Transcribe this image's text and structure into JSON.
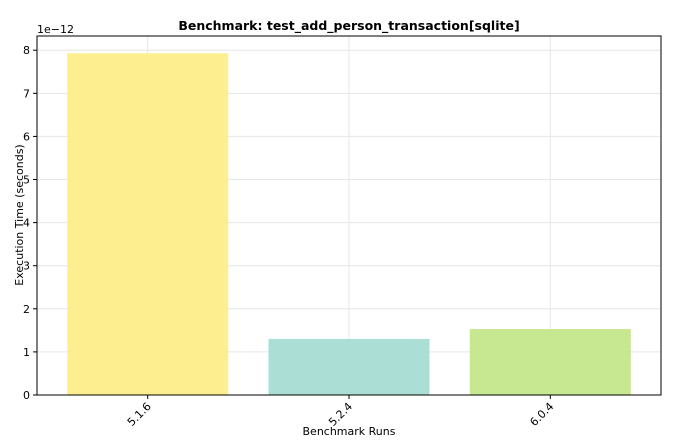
{
  "chart_data": {
    "type": "bar",
    "title": "Benchmark: test_add_person_transaction[sqlite]",
    "x_label": "Benchmark Runs",
    "y_label": "Execution Time (seconds)",
    "y_offset_text": "1e−12",
    "categories": [
      "5.1.6",
      "5.2.4",
      "6.0.4"
    ],
    "values": [
      7.93,
      1.3,
      1.53
    ],
    "colors": [
      "#fdee8a",
      "#a6ddd3",
      "#c4e68a"
    ],
    "ylim": [
      0,
      8.33
    ],
    "yticks": [
      0,
      1,
      2,
      3,
      4,
      5,
      6,
      7,
      8
    ],
    "grid": true
  }
}
